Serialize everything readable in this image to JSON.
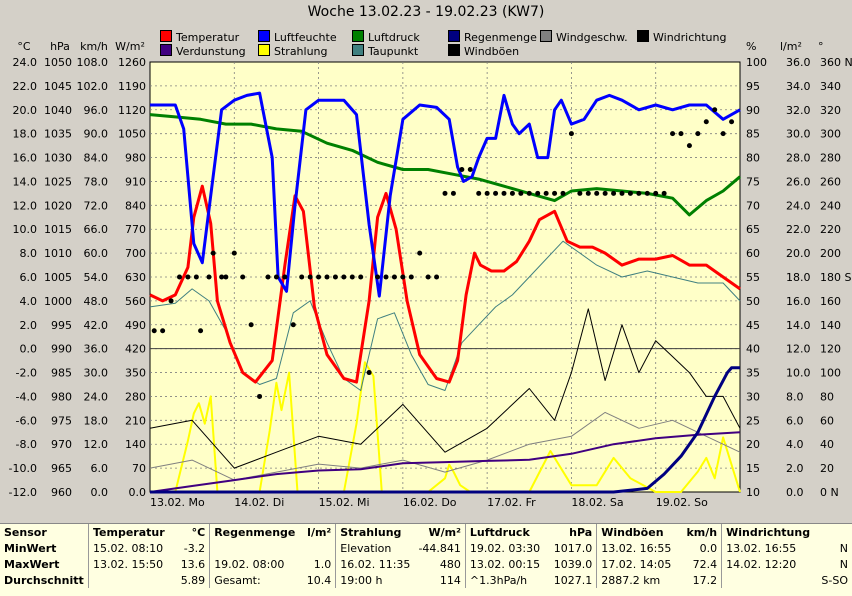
{
  "title": "Woche 13.02.23 - 19.02.23 (KW7)",
  "axis_units": {
    "left": [
      "°C",
      "hPa",
      "km/h",
      "W/m²"
    ],
    "right": [
      "%",
      "l/m²",
      "°"
    ]
  },
  "legend": [
    {
      "label": "Temperatur",
      "color": "#ff0000"
    },
    {
      "label": "Luftfeuchte",
      "color": "#0000ff"
    },
    {
      "label": "Luftdruck",
      "color": "#008000"
    },
    {
      "label": "Regenmenge",
      "color": "#000080"
    },
    {
      "label": "Windgeschw.",
      "color": "#808080"
    },
    {
      "label": "Windrichtung",
      "color": "#000000"
    },
    {
      "label": "Verdunstung",
      "color": "#400080"
    },
    {
      "label": "Strahlung",
      "color": "#ffff00"
    },
    {
      "label": "Taupunkt",
      "color": "#408080"
    },
    {
      "label": "Windböen",
      "color": "#000000"
    }
  ],
  "chart_data": {
    "type": "line",
    "title": "Woche 13.02.23 - 19.02.23 (KW7)",
    "x_tick_labels": [
      "13.02. Mo",
      "14.02. Di",
      "15.02. Mi",
      "16.02. Do",
      "17.02. Fr",
      "18.02. Sa",
      "19.02. So"
    ],
    "x_range_days": [
      0,
      7
    ],
    "left_axes": {
      "temperature_C": {
        "min": -12.0,
        "max": 24.0,
        "ticks": [
          "24.0",
          "22.0",
          "20.0",
          "18.0",
          "16.0",
          "14.0",
          "12.0",
          "10.0",
          "8.0",
          "6.0",
          "4.0",
          "2.0",
          "0.0",
          "-2.0",
          "-4.0",
          "-6.0",
          "-8.0",
          "-10.0",
          "-12.0"
        ]
      },
      "pressure_hPa": {
        "min": 960,
        "max": 1050,
        "ticks": [
          "1050",
          "1045",
          "1040",
          "1035",
          "1030",
          "1025",
          "1020",
          "1015",
          "1010",
          "1005",
          "1000",
          "995",
          "990",
          "985",
          "980",
          "975",
          "970",
          "965",
          "960"
        ]
      },
      "wind_kmh": {
        "min": 0.0,
        "max": 108.0,
        "ticks": [
          "108.0",
          "102.0",
          "96.0",
          "90.0",
          "84.0",
          "78.0",
          "72.0",
          "66.0",
          "60.0",
          "54.0",
          "48.0",
          "42.0",
          "36.0",
          "30.0",
          "24.0",
          "18.0",
          "12.0",
          "6.0",
          "0.0"
        ]
      },
      "radiation_Wm2": {
        "min": 0.0,
        "max": 1260.0,
        "ticks": [
          "1260",
          "1190",
          "1120",
          "1050",
          "980",
          "910",
          "840",
          "770",
          "700",
          "630",
          "560",
          "490",
          "420",
          "350",
          "280",
          "210",
          "140",
          "70",
          "0.0"
        ]
      }
    },
    "right_axes": {
      "humidity_pct": {
        "min": 10,
        "max": 100,
        "ticks": [
          "100",
          "95",
          "90",
          "85",
          "80",
          "75",
          "70",
          "65",
          "60",
          "55",
          "50",
          "45",
          "40",
          "35",
          "30",
          "25",
          "20",
          "15",
          "10"
        ]
      },
      "rain_lm2": {
        "min": 0.0,
        "max": 36.0,
        "ticks": [
          "36.0",
          "34.0",
          "32.0",
          "30.0",
          "28.0",
          "26.0",
          "24.0",
          "22.0",
          "20.0",
          "18.0",
          "16.0",
          "14.0",
          "12.0",
          "10.0",
          "8.0",
          "6.0",
          "4.0",
          "2.0",
          "0.0"
        ]
      },
      "wind_dir_deg": {
        "min": 0,
        "max": 360,
        "ticks": [
          "360 N",
          "340",
          "320",
          "300",
          "280",
          "260",
          "240",
          "220",
          "200",
          "180 S",
          "160",
          "140",
          "120",
          "100",
          "80",
          "60",
          "40",
          "20",
          "0 N"
        ]
      }
    },
    "grid": true,
    "series": [
      {
        "name": "Temperatur",
        "axis": "temperature_C",
        "color": "#ff0000",
        "width": 3,
        "x": [
          0,
          0.15,
          0.3,
          0.45,
          0.52,
          0.62,
          0.72,
          0.8,
          0.95,
          1.1,
          1.25,
          1.45,
          1.6,
          1.72,
          1.82,
          1.95,
          2.1,
          2.3,
          2.45,
          2.6,
          2.7,
          2.8,
          2.92,
          3.05,
          3.2,
          3.4,
          3.55,
          3.65,
          3.75,
          3.85,
          3.92,
          4.05,
          4.2,
          4.35,
          4.5,
          4.62,
          4.8,
          4.95,
          5.1,
          5.25,
          5.4,
          5.6,
          5.8,
          6.0,
          6.2,
          6.4,
          6.6,
          6.8,
          7.0
        ],
        "y": [
          4.5,
          4.0,
          4.5,
          6.8,
          11.0,
          13.6,
          10.5,
          4.0,
          0.5,
          -2.0,
          -2.8,
          -1.0,
          7.0,
          12.8,
          11.5,
          3.5,
          -0.5,
          -2.5,
          -2.8,
          4.0,
          11.0,
          13.0,
          10.0,
          4.0,
          -0.5,
          -2.5,
          -2.8,
          -1.0,
          4.5,
          8.0,
          7.0,
          6.5,
          6.5,
          7.3,
          9.0,
          10.8,
          11.5,
          9.0,
          8.5,
          8.5,
          8.0,
          7.0,
          7.5,
          7.5,
          7.8,
          7.0,
          7.0,
          6.0,
          5.0
        ]
      },
      {
        "name": "Luftfeuchte",
        "axis": "humidity_pct",
        "color": "#0000ff",
        "width": 3,
        "x": [
          0,
          0.3,
          0.4,
          0.52,
          0.62,
          0.72,
          0.85,
          1.0,
          1.15,
          1.3,
          1.45,
          1.52,
          1.62,
          1.72,
          1.85,
          2.0,
          2.3,
          2.45,
          2.6,
          2.72,
          2.85,
          3.0,
          3.2,
          3.4,
          3.55,
          3.65,
          3.72,
          3.82,
          3.9,
          4.0,
          4.1,
          4.2,
          4.3,
          4.38,
          4.5,
          4.6,
          4.72,
          4.8,
          4.88,
          5.0,
          5.15,
          5.3,
          5.45,
          5.6,
          5.8,
          6.0,
          6.2,
          6.4,
          6.6,
          6.8,
          7.0
        ],
        "y": [
          91,
          91,
          86,
          62,
          58,
          72,
          90,
          92,
          93,
          93.5,
          80,
          55,
          52,
          70,
          90,
          92,
          92,
          89,
          66,
          51,
          72,
          88,
          91,
          90.5,
          88,
          78,
          75,
          76,
          80,
          84,
          84,
          93,
          87,
          85,
          87,
          80,
          80,
          90,
          92,
          87,
          88,
          92,
          93,
          92,
          90,
          91,
          90,
          91,
          91,
          88,
          90
        ]
      },
      {
        "name": "Luftdruck",
        "axis": "pressure_hPa",
        "color": "#008000",
        "width": 3,
        "x": [
          0,
          0.3,
          0.6,
          0.9,
          1.2,
          1.5,
          1.8,
          2.1,
          2.4,
          2.7,
          3.0,
          3.3,
          3.6,
          3.9,
          4.2,
          4.5,
          4.8,
          5.0,
          5.3,
          5.6,
          5.9,
          6.2,
          6.4,
          6.6,
          6.8,
          7.0
        ],
        "y": [
          1039,
          1038.5,
          1038,
          1037,
          1037,
          1036,
          1035.5,
          1033,
          1031.5,
          1029,
          1027.5,
          1027.5,
          1026.5,
          1025.5,
          1024,
          1022.5,
          1021,
          1023,
          1023.5,
          1023,
          1022.5,
          1021.5,
          1018,
          1021,
          1023,
          1026
        ]
      },
      {
        "name": "Taupunkt",
        "axis": "temperature_C",
        "color": "#408080",
        "width": 1,
        "x": [
          0,
          0.3,
          0.5,
          0.7,
          0.9,
          1.1,
          1.3,
          1.5,
          1.7,
          1.9,
          2.1,
          2.3,
          2.5,
          2.7,
          2.9,
          3.1,
          3.3,
          3.5,
          3.7,
          3.9,
          4.1,
          4.3,
          4.5,
          4.7,
          4.9,
          5.1,
          5.3,
          5.6,
          5.9,
          6.2,
          6.5,
          6.8,
          7.0
        ],
        "y": [
          3.5,
          3.8,
          5.0,
          4.0,
          1.5,
          -2.0,
          -3.0,
          -2.5,
          3.0,
          4.0,
          0.5,
          -2.5,
          -3.5,
          2.5,
          3.0,
          -0.5,
          -3.0,
          -3.5,
          0.5,
          2.0,
          3.5,
          4.5,
          6.0,
          7.5,
          9.0,
          8.0,
          7.0,
          6.0,
          6.5,
          6.0,
          5.5,
          5.5,
          4.0
        ]
      },
      {
        "name": "Windböen",
        "axis": "wind_kmh",
        "color": "#000000",
        "width": 1,
        "x": [
          0,
          0.5,
          1.0,
          1.5,
          2.0,
          2.5,
          3.0,
          3.5,
          4.0,
          4.5,
          4.8,
          5.0,
          5.2,
          5.4,
          5.6,
          5.8,
          6.0,
          6.2,
          6.4,
          6.6,
          6.8,
          7.0
        ],
        "y": [
          16,
          18,
          6,
          10,
          14,
          12,
          22,
          10,
          16,
          26,
          18,
          30,
          46,
          28,
          42,
          30,
          38,
          34,
          30,
          24,
          24,
          16
        ]
      },
      {
        "name": "Windgeschw.",
        "axis": "wind_kmh",
        "color": "#808080",
        "width": 1,
        "x": [
          0,
          0.5,
          1.0,
          1.5,
          2.0,
          2.5,
          3.0,
          3.5,
          4.0,
          4.5,
          5.0,
          5.4,
          5.8,
          6.2,
          6.6,
          7.0
        ],
        "y": [
          6,
          8,
          3,
          5,
          7,
          6,
          8,
          5,
          8,
          12,
          14,
          20,
          16,
          18,
          14,
          10
        ]
      },
      {
        "name": "Strahlung",
        "axis": "radiation_Wm2",
        "color": "#ffff00",
        "width": 2,
        "x": [
          0,
          0.3,
          0.45,
          0.52,
          0.58,
          0.65,
          0.72,
          0.8,
          1.0,
          1.3,
          1.42,
          1.5,
          1.56,
          1.65,
          1.75,
          2.0,
          2.3,
          2.45,
          2.55,
          2.65,
          2.75,
          3.0,
          3.3,
          3.5,
          3.55,
          3.6,
          3.68,
          3.8,
          4.0,
          4.3,
          4.5,
          4.75,
          5.0,
          5.3,
          5.5,
          5.7,
          6.0,
          6.3,
          6.5,
          6.6,
          6.7,
          6.8,
          7.0
        ],
        "y": [
          0,
          0,
          150,
          230,
          260,
          200,
          280,
          0,
          0,
          0,
          180,
          320,
          240,
          350,
          0,
          0,
          0,
          200,
          380,
          340,
          0,
          0,
          0,
          40,
          80,
          60,
          20,
          0,
          0,
          0,
          0,
          120,
          20,
          20,
          100,
          40,
          0,
          0,
          60,
          100,
          40,
          160,
          0
        ]
      },
      {
        "name": "Verdunstung",
        "axis": "rain_lm2",
        "color": "#400080",
        "width": 2,
        "x": [
          0,
          0.5,
          1.0,
          1.5,
          2.0,
          2.5,
          3.0,
          3.5,
          4.0,
          4.5,
          5.0,
          5.5,
          6.0,
          6.5,
          7.0
        ],
        "y": [
          0,
          0.5,
          1.0,
          1.5,
          1.8,
          1.9,
          2.4,
          2.5,
          2.6,
          2.7,
          3.2,
          4.0,
          4.5,
          4.8,
          5.0
        ]
      },
      {
        "name": "Regenmenge",
        "axis": "rain_lm2",
        "color": "#000080",
        "width": 3,
        "x": [
          0,
          4.5,
          5.5,
          5.9,
          6.1,
          6.3,
          6.5,
          6.7,
          6.85,
          6.9,
          7.0
        ],
        "y": [
          0,
          0,
          0,
          0.3,
          1.5,
          3.0,
          5.0,
          8.0,
          10.0,
          10.4,
          10.4
        ]
      }
    ],
    "wind_direction_points": {
      "name": "Windrichtung",
      "axis": "wind_dir_deg",
      "color": "#000000",
      "x": [
        0.05,
        0.15,
        0.25,
        0.35,
        0.45,
        0.55,
        0.6,
        0.7,
        0.75,
        0.85,
        0.9,
        1.0,
        1.1,
        1.2,
        1.3,
        1.4,
        1.5,
        1.6,
        1.7,
        1.8,
        1.9,
        2.0,
        2.1,
        2.2,
        2.3,
        2.4,
        2.5,
        2.6,
        2.7,
        2.8,
        2.9,
        3.0,
        3.1,
        3.2,
        3.3,
        3.4,
        3.5,
        3.6,
        3.7,
        3.8,
        3.9,
        4.0,
        4.1,
        4.2,
        4.3,
        4.4,
        4.5,
        4.6,
        4.7,
        4.8,
        4.9,
        5.0,
        5.1,
        5.2,
        5.3,
        5.4,
        5.5,
        5.6,
        5.7,
        5.8,
        5.9,
        6.0,
        6.1,
        6.2,
        6.3,
        6.4,
        6.5,
        6.6,
        6.7,
        6.8,
        6.9
      ],
      "y": [
        135,
        135,
        160,
        180,
        180,
        180,
        135,
        180,
        200,
        180,
        180,
        200,
        180,
        140,
        80,
        180,
        180,
        180,
        140,
        180,
        180,
        180,
        180,
        180,
        180,
        180,
        180,
        100,
        180,
        180,
        180,
        180,
        180,
        200,
        180,
        180,
        250,
        250,
        270,
        270,
        250,
        250,
        250,
        250,
        250,
        250,
        250,
        250,
        250,
        250,
        250,
        300,
        250,
        250,
        250,
        250,
        250,
        250,
        250,
        250,
        250,
        250,
        250,
        300,
        300,
        290,
        300,
        310,
        320,
        300,
        310
      ]
    }
  },
  "stats_table": {
    "header": [
      "Sensor",
      "Temperatur",
      "°C",
      "Regenmenge",
      "l/m²",
      "Strahlung",
      "W/m²",
      "Luftdruck",
      "hPa",
      "Windböen",
      "km/h",
      "Windrichtung",
      ""
    ],
    "rows": [
      [
        "MinWert",
        "15.02.  08:10",
        "-3.2",
        "",
        "",
        "Elevation",
        "-44.841",
        "19.02.  03:30",
        "1017.0",
        "13.02.  16:55",
        "0.0",
        "13.02.  16:55",
        "N"
      ],
      [
        "MaxWert",
        "13.02.  15:50",
        "13.6",
        "19.02.  08:00",
        "1.0",
        "16.02.  11:35",
        "480",
        "13.02.  00:15",
        "1039.0",
        "17.02.  14:05",
        "72.4",
        "14.02.  12:20",
        "N"
      ],
      [
        "Durchschnitt",
        "",
        "5.89",
        "Gesamt:",
        "10.4",
        "19:00 h",
        "114",
        "^1.3hPa/h",
        "1027.1",
        "2887.2 km",
        "17.2",
        "",
        "S-SO"
      ]
    ]
  }
}
